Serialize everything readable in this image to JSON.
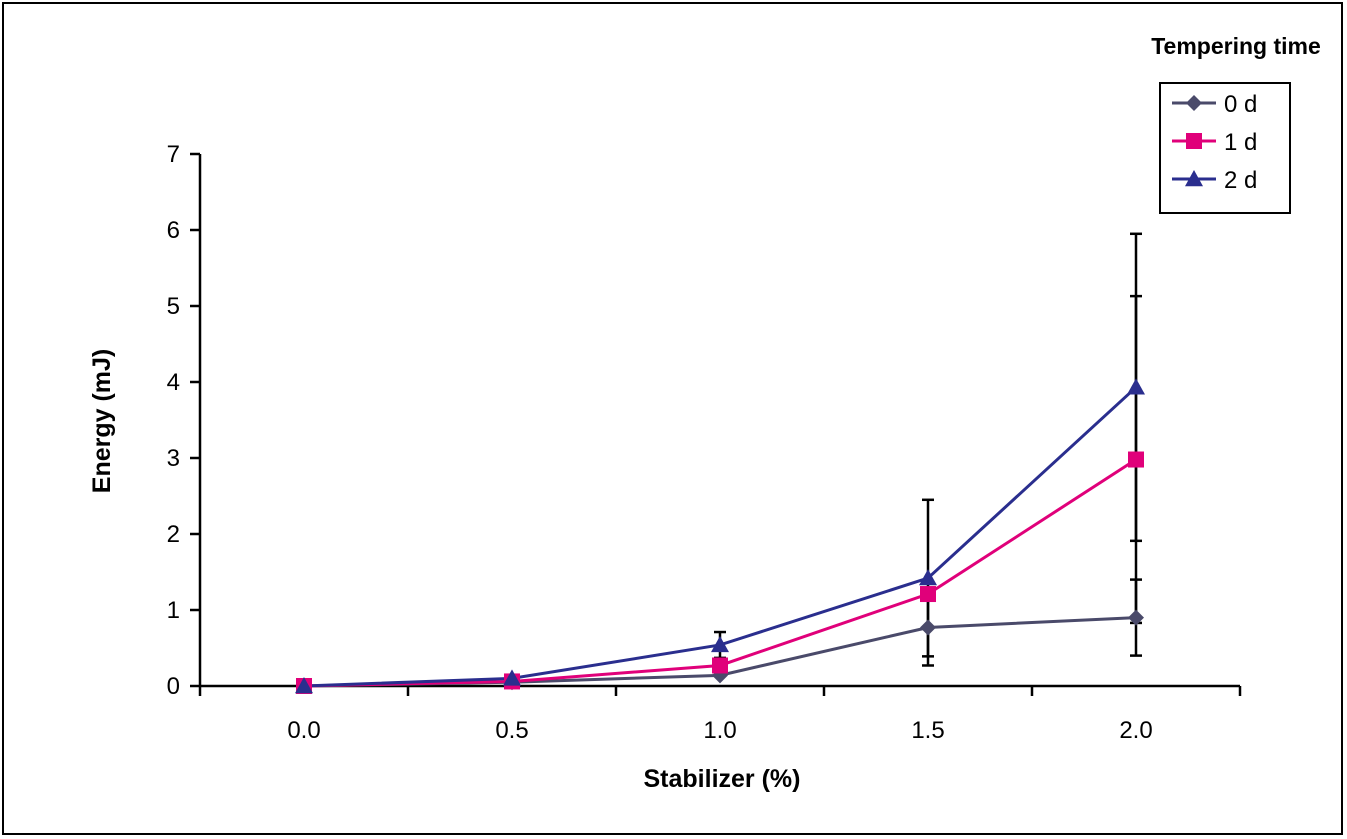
{
  "chart_data": {
    "type": "line",
    "title": "",
    "xlabel": "Stabilizer (%)",
    "ylabel": "Energy (mJ)",
    "x": [
      0.0,
      0.5,
      1.0,
      1.5,
      2.0
    ],
    "x_tick_labels": [
      "0.0",
      "0.5",
      "1.0",
      "1.5",
      "2.0"
    ],
    "ylim": [
      0,
      7
    ],
    "y_ticks": [
      0,
      1,
      2,
      3,
      4,
      5,
      6,
      7
    ],
    "grid": false,
    "legend": {
      "title": "Tempering time",
      "placement": "top-right"
    },
    "series": [
      {
        "name": "0 d",
        "marker": "diamond",
        "color": "#4a4a6a",
        "values": [
          0.0,
          0.05,
          0.14,
          0.77,
          0.9
        ],
        "error": [
          0.0,
          0.0,
          0.0,
          0.5,
          0.5
        ]
      },
      {
        "name": "1 d",
        "marker": "square",
        "color": "#e0007a",
        "values": [
          0.0,
          0.06,
          0.27,
          1.21,
          2.98
        ],
        "error": [
          0.0,
          0.0,
          0.0,
          0.0,
          2.15
        ]
      },
      {
        "name": "2 d",
        "marker": "triangle",
        "color": "#2a2e8e",
        "values": [
          0.0,
          0.1,
          0.54,
          1.42,
          3.93
        ],
        "error": [
          0.0,
          0.0,
          0.17,
          1.03,
          2.02
        ]
      }
    ]
  }
}
